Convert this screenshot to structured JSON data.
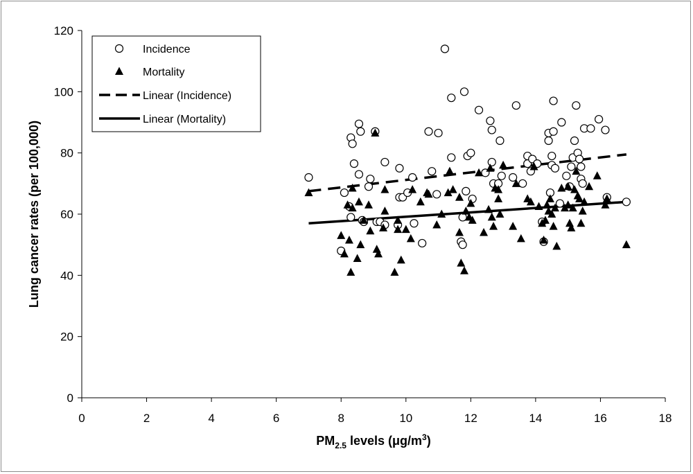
{
  "chart_data": {
    "type": "scatter",
    "xlabel": {
      "prefix": "PM",
      "sub": "2.5",
      "mid": " levels (μg/m",
      "sup": "3",
      "suffix": ")"
    },
    "ylabel": "Lung cancer rates (per 100,000)",
    "xlim": [
      0,
      18
    ],
    "ylim": [
      0,
      120
    ],
    "xticks": [
      0,
      2,
      4,
      6,
      8,
      10,
      12,
      14,
      16,
      18
    ],
    "yticks": [
      0,
      20,
      40,
      60,
      80,
      100,
      120
    ],
    "grid": false,
    "legend_position": "top-left",
    "series": [
      {
        "name": "Incidence",
        "marker": "open-circle",
        "color": "#000000",
        "points": [
          [
            7.0,
            72.0
          ],
          [
            8.0,
            48.0
          ],
          [
            8.1,
            67.0
          ],
          [
            8.3,
            85.0
          ],
          [
            8.35,
            83.0
          ],
          [
            8.4,
            76.5
          ],
          [
            8.25,
            62.5
          ],
          [
            8.3,
            59.0
          ],
          [
            8.55,
            89.5
          ],
          [
            8.6,
            87.0
          ],
          [
            8.55,
            73.0
          ],
          [
            8.65,
            58.0
          ],
          [
            8.7,
            57.5
          ],
          [
            8.9,
            71.5
          ],
          [
            8.85,
            69.0
          ],
          [
            9.05,
            87.0
          ],
          [
            9.1,
            57.5
          ],
          [
            9.2,
            57.5
          ],
          [
            9.35,
            77.0
          ],
          [
            9.35,
            56.5
          ],
          [
            9.75,
            56.5
          ],
          [
            9.8,
            75.0
          ],
          [
            9.8,
            65.5
          ],
          [
            9.9,
            65.5
          ],
          [
            10.05,
            67.0
          ],
          [
            10.2,
            72.0
          ],
          [
            10.25,
            57.0
          ],
          [
            10.5,
            50.5
          ],
          [
            10.7,
            87.0
          ],
          [
            10.8,
            74.0
          ],
          [
            10.95,
            66.5
          ],
          [
            11.0,
            86.5
          ],
          [
            11.2,
            114.0
          ],
          [
            11.4,
            78.5
          ],
          [
            11.4,
            98.0
          ],
          [
            11.8,
            100.0
          ],
          [
            11.7,
            51.0
          ],
          [
            11.75,
            50.0
          ],
          [
            11.75,
            59.0
          ],
          [
            11.85,
            67.5
          ],
          [
            11.9,
            79.0
          ],
          [
            12.0,
            80.0
          ],
          [
            12.05,
            65.0
          ],
          [
            12.25,
            94.0
          ],
          [
            12.45,
            73.5
          ],
          [
            12.6,
            90.5
          ],
          [
            12.65,
            87.5
          ],
          [
            12.65,
            77.0
          ],
          [
            12.7,
            70.0
          ],
          [
            12.85,
            70.0
          ],
          [
            12.9,
            84.0
          ],
          [
            12.95,
            72.5
          ],
          [
            13.3,
            72.0
          ],
          [
            13.4,
            95.5
          ],
          [
            13.6,
            70.0
          ],
          [
            13.75,
            79.0
          ],
          [
            13.75,
            76.5
          ],
          [
            13.85,
            74.0
          ],
          [
            13.9,
            78.0
          ],
          [
            14.05,
            76.5
          ],
          [
            14.2,
            57.5
          ],
          [
            14.25,
            51.0
          ],
          [
            14.4,
            84.0
          ],
          [
            14.4,
            86.5
          ],
          [
            14.45,
            67.0
          ],
          [
            14.5,
            79.0
          ],
          [
            14.5,
            76.0
          ],
          [
            14.55,
            87.0
          ],
          [
            14.55,
            97.0
          ],
          [
            14.6,
            75.0
          ],
          [
            14.75,
            63.5
          ],
          [
            14.8,
            90.0
          ],
          [
            14.95,
            72.5
          ],
          [
            15.05,
            69.0
          ],
          [
            15.1,
            75.5
          ],
          [
            15.15,
            78.5
          ],
          [
            15.25,
            95.5
          ],
          [
            15.3,
            80.0
          ],
          [
            15.2,
            84.0
          ],
          [
            15.35,
            78.0
          ],
          [
            15.4,
            75.5
          ],
          [
            15.4,
            71.5
          ],
          [
            15.45,
            70.0
          ],
          [
            15.5,
            88.0
          ],
          [
            15.7,
            88.0
          ],
          [
            15.95,
            91.0
          ],
          [
            16.15,
            87.5
          ],
          [
            16.2,
            65.5
          ],
          [
            16.8,
            64.0
          ]
        ]
      },
      {
        "name": "Mortality",
        "marker": "filled-triangle",
        "color": "#000000",
        "points": [
          [
            7.0,
            67.0
          ],
          [
            8.0,
            53.0
          ],
          [
            8.1,
            47.0
          ],
          [
            8.2,
            63.0
          ],
          [
            8.25,
            51.5
          ],
          [
            8.3,
            41.0
          ],
          [
            8.35,
            68.5
          ],
          [
            8.35,
            62.0
          ],
          [
            8.5,
            45.5
          ],
          [
            8.55,
            64.0
          ],
          [
            8.6,
            50.0
          ],
          [
            8.7,
            58.0
          ],
          [
            8.85,
            63.0
          ],
          [
            8.9,
            54.5
          ],
          [
            9.05,
            86.5
          ],
          [
            9.1,
            48.5
          ],
          [
            9.15,
            47.0
          ],
          [
            9.3,
            55.5
          ],
          [
            9.35,
            68.0
          ],
          [
            9.35,
            61.0
          ],
          [
            9.65,
            41.0
          ],
          [
            9.75,
            58.0
          ],
          [
            9.75,
            55.0
          ],
          [
            9.85,
            45.0
          ],
          [
            10.0,
            55.0
          ],
          [
            10.15,
            52.0
          ],
          [
            10.2,
            68.0
          ],
          [
            10.45,
            64.0
          ],
          [
            10.65,
            67.0
          ],
          [
            10.7,
            66.5
          ],
          [
            10.95,
            56.5
          ],
          [
            11.1,
            60.0
          ],
          [
            11.3,
            67.0
          ],
          [
            11.35,
            74.0
          ],
          [
            11.45,
            68.0
          ],
          [
            11.65,
            54.0
          ],
          [
            11.65,
            65.5
          ],
          [
            11.7,
            44.0
          ],
          [
            11.8,
            41.5
          ],
          [
            11.85,
            61.0
          ],
          [
            11.95,
            59.0
          ],
          [
            12.0,
            63.5
          ],
          [
            12.05,
            58.0
          ],
          [
            12.25,
            73.5
          ],
          [
            12.4,
            54.0
          ],
          [
            12.55,
            61.5
          ],
          [
            12.6,
            75.0
          ],
          [
            12.65,
            59.0
          ],
          [
            12.7,
            56.0
          ],
          [
            12.75,
            68.5
          ],
          [
            12.85,
            65.0
          ],
          [
            12.85,
            68.0
          ],
          [
            12.9,
            60.0
          ],
          [
            13.0,
            76.0
          ],
          [
            13.3,
            56.0
          ],
          [
            13.4,
            70.0
          ],
          [
            13.55,
            52.0
          ],
          [
            13.75,
            65.0
          ],
          [
            13.85,
            64.0
          ],
          [
            13.95,
            75.5
          ],
          [
            14.1,
            62.5
          ],
          [
            14.2,
            57.0
          ],
          [
            14.25,
            51.5
          ],
          [
            14.3,
            58.0
          ],
          [
            14.35,
            63.0
          ],
          [
            14.4,
            61.0
          ],
          [
            14.45,
            65.0
          ],
          [
            14.5,
            60.0
          ],
          [
            14.55,
            56.0
          ],
          [
            14.6,
            62.0
          ],
          [
            14.65,
            49.5
          ],
          [
            14.8,
            68.5
          ],
          [
            14.9,
            62.0
          ],
          [
            15.0,
            69.0
          ],
          [
            15.0,
            63.0
          ],
          [
            15.05,
            57.0
          ],
          [
            15.1,
            55.5
          ],
          [
            15.15,
            62.0
          ],
          [
            15.2,
            68.0
          ],
          [
            15.25,
            74.0
          ],
          [
            15.3,
            66.0
          ],
          [
            15.35,
            65.0
          ],
          [
            15.4,
            57.0
          ],
          [
            15.45,
            61.0
          ],
          [
            15.5,
            64.0
          ],
          [
            15.65,
            69.0
          ],
          [
            15.9,
            72.5
          ],
          [
            16.15,
            63.0
          ],
          [
            16.2,
            65.0
          ],
          [
            16.8,
            50.0
          ]
        ]
      },
      {
        "name": "Linear (Incidence)",
        "type": "line",
        "style": "dashed",
        "color": "#000000",
        "x": [
          7.0,
          16.8
        ],
        "y": [
          67.5,
          79.5
        ]
      },
      {
        "name": "Linear (Mortality)",
        "type": "line",
        "style": "solid",
        "color": "#000000",
        "x": [
          7.0,
          16.8
        ],
        "y": [
          57.0,
          64.0
        ]
      }
    ]
  }
}
